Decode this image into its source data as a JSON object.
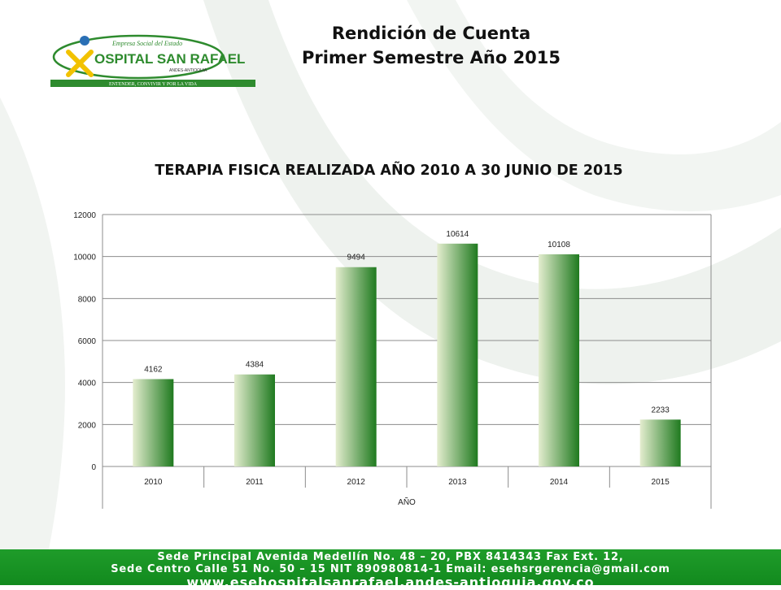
{
  "header": {
    "title_line1": "Rendición de Cuenta",
    "title_line2": "Primer Semestre  Año  2015"
  },
  "logo": {
    "top_text": "Empresa Social del Estado",
    "name": "OSPITAL SAN RAFAEL",
    "location": "ANDES-ANTIOQUIA",
    "slogan": "ENTENDER, CONVIVIR Y POR LA VIDA",
    "colors": {
      "green": "#2e8b2e",
      "yellow": "#f2c200",
      "blue": "#2a6fb5"
    }
  },
  "chart_data": {
    "type": "bar",
    "title": "TERAPIA FISICA REALIZADA AÑO 2010 A 30 JUNIO DE 2015",
    "xlabel": "AÑO",
    "ylabel": "",
    "categories": [
      "2010",
      "2011",
      "2012",
      "2013",
      "2014",
      "2015"
    ],
    "values": [
      4162,
      4384,
      9494,
      10614,
      10108,
      2233
    ],
    "data_labels": [
      "4162",
      "4384",
      "9494",
      "10614",
      "10108",
      "2233"
    ],
    "ylim": [
      0,
      12000
    ],
    "yticks": [
      0,
      2000,
      4000,
      6000,
      8000,
      10000,
      12000
    ],
    "ytick_labels": [
      "0",
      "2000",
      "4000",
      "6000",
      "8000",
      "10000",
      "12000"
    ],
    "grid": true,
    "legend": "none",
    "bar_color_light": "#e4edcf",
    "bar_color_dark": "#1f7a1f"
  },
  "footer": {
    "line1": "Sede Principal Avenida Medellín No. 48 – 20, PBX 8414343 Fax Ext. 12,",
    "line2": "Sede Centro Calle 51 No. 50 – 15 NIT 890980814-1 Email: esehsrgerencia@gmail.com",
    "line3": "www.esehospitalsanrafael.andes-antioquia.gov.co",
    "background": "#1a9426"
  }
}
